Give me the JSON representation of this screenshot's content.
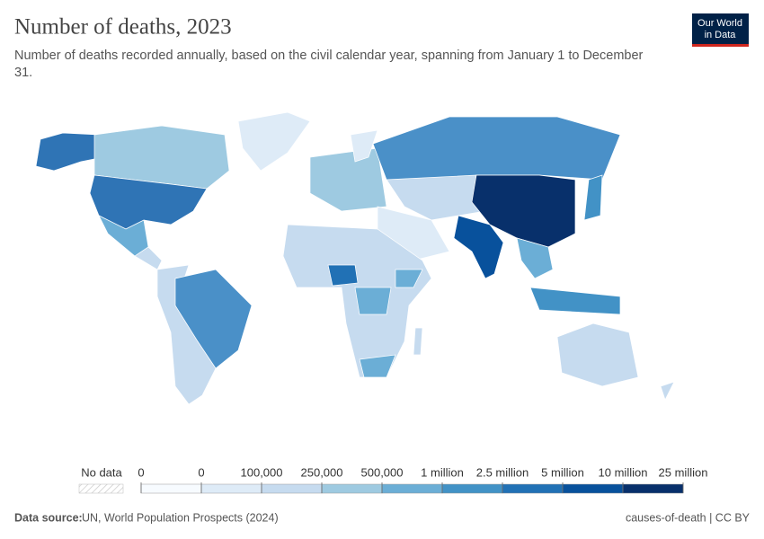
{
  "header": {
    "title": "Number of deaths, 2023",
    "subtitle_lines": [
      "Number of deaths recorded annually, based on the civil calendar year, spanning from January 1 to December",
      "31."
    ]
  },
  "logo": {
    "lines": [
      "Our World",
      "in Data"
    ]
  },
  "legend": {
    "no_data": "No data",
    "ticks": [
      0,
      0,
      {
        "value": 100000,
        "label": "100,000"
      },
      {
        "value": 250000,
        "label": "250,000"
      },
      {
        "value": 500000,
        "label": "500,000"
      },
      {
        "value": 1000000,
        "label": "1 million"
      },
      {
        "value": 2500000,
        "label": "2.5 million"
      },
      {
        "value": 5000000,
        "label": "5 million"
      },
      {
        "value": 10000000,
        "label": "10 million"
      },
      {
        "value": 25000000,
        "label": "25 million"
      }
    ],
    "colors": [
      "#f7fbff",
      "#deebf7",
      "#c6dbef",
      "#9ecae1",
      "#6baed6",
      "#4292c6",
      "#2171b5",
      "#08519c",
      "#08306b"
    ]
  },
  "footer": {
    "source_label": "Data source:",
    "source": "UN, World Population Prospects (2024)",
    "license": "causes-of-death | CC BY"
  }
}
